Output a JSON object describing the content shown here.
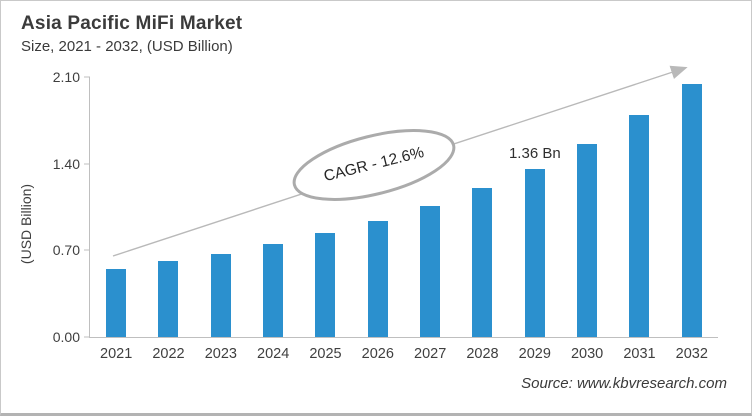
{
  "header": {
    "title": "Asia Pacific MiFi Market",
    "subtitle": "Size, 2021 - 2032, (USD Billion)"
  },
  "y_axis_title": "(USD Billion)",
  "source": "Source: www.kbvresearch.com",
  "annotations": {
    "cagr_text": "CAGR - 12.6%",
    "peak_label_text": "1.36 Bn",
    "peak_label_category": "2029",
    "trend_arrow": "up-right"
  },
  "colors": {
    "bar": "#2b90ce",
    "axis": "#bfbfbf",
    "arrow": "#b9b9b9",
    "ellipse_stroke": "#ababab",
    "text": "#3f3f3f"
  },
  "chart_data": {
    "type": "bar",
    "title": "Asia Pacific MiFi Market Size, 2021 - 2032, (USD Billion)",
    "categories": [
      "2021",
      "2022",
      "2023",
      "2024",
      "2025",
      "2026",
      "2027",
      "2028",
      "2029",
      "2030",
      "2031",
      "2032"
    ],
    "values": [
      0.55,
      0.61,
      0.67,
      0.75,
      0.84,
      0.94,
      1.06,
      1.2,
      1.36,
      1.56,
      1.79,
      2.04
    ],
    "xlabel": "",
    "ylabel": "(USD Billion)",
    "ylim": [
      0,
      2.1
    ],
    "y_ticks": [
      0.0,
      0.7,
      1.4,
      2.1
    ],
    "y_tick_labels": [
      "0.00",
      "0.70",
      "1.40",
      "2.10"
    ],
    "grid": false,
    "legend": false,
    "bar_color": "#2b90ce",
    "annotations": [
      {
        "type": "ellipse-callout",
        "text": "CAGR - 12.6%"
      },
      {
        "type": "data-label",
        "category": "2029",
        "text": "1.36 Bn"
      },
      {
        "type": "trend-arrow",
        "direction": "up-right"
      }
    ],
    "source": "Source: www.kbvresearch.com"
  }
}
